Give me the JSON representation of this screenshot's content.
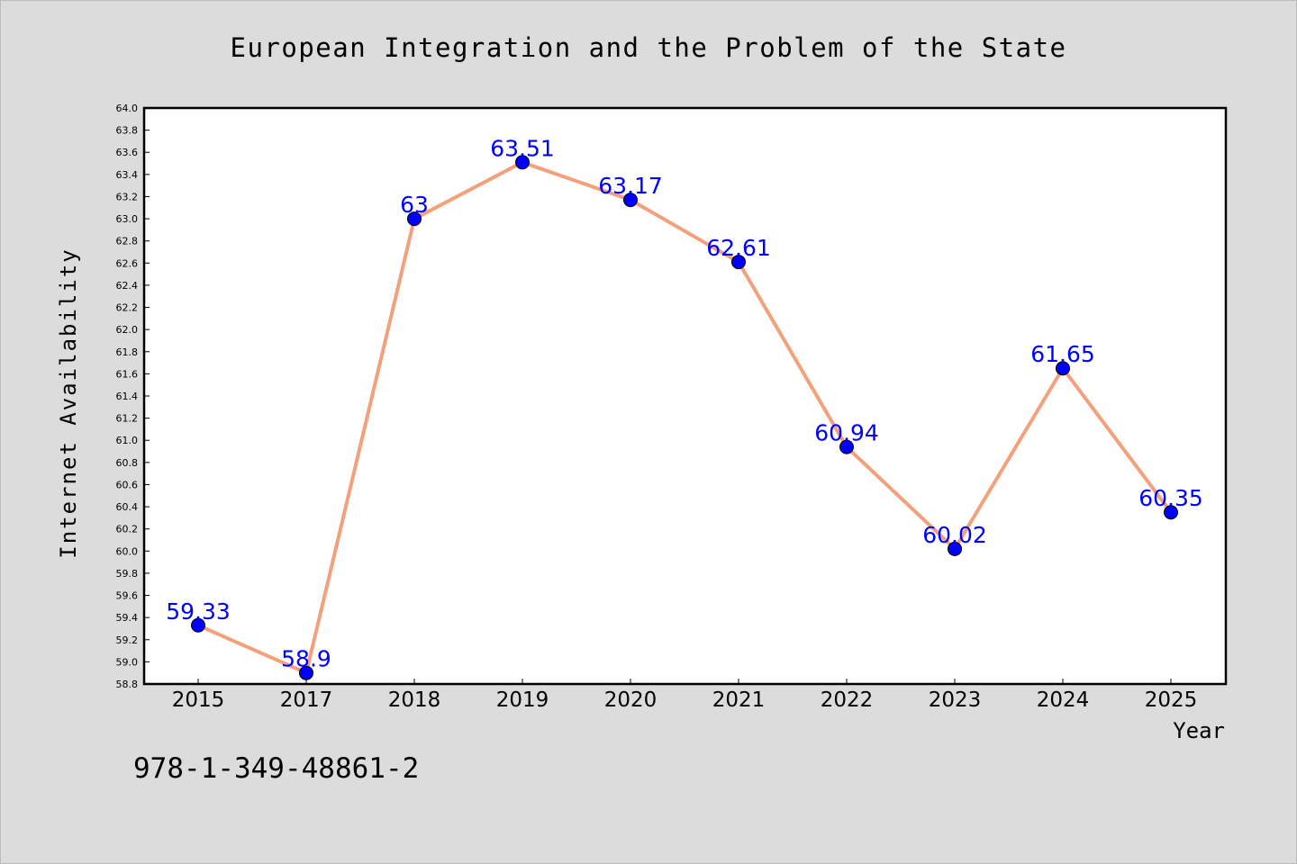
{
  "isbn": "978-1-349-48861-2",
  "chart_data": {
    "type": "line",
    "title": "European Integration and the Problem of the State",
    "xlabel": "Year",
    "ylabel": "Internet Availability",
    "categories": [
      "2015",
      "2017",
      "2018",
      "2019",
      "2020",
      "2021",
      "2022",
      "2023",
      "2024",
      "2025"
    ],
    "series": [
      {
        "values": [
          59.33,
          58.9,
          63,
          63.51,
          63.17,
          62.61,
          60.94,
          60.02,
          61.65,
          60.35
        ],
        "labels": [
          "59.33",
          "58.9",
          "63",
          "63.51",
          "63.17",
          "62.61",
          "60.94",
          "60.02",
          "61.65",
          "60.35"
        ],
        "line_color": "#f4a07a",
        "marker_color": "#0000ff"
      }
    ],
    "ylim": [
      58.8,
      64.0
    ],
    "ytick_step": 0.2,
    "grid": false,
    "legend": "none"
  }
}
